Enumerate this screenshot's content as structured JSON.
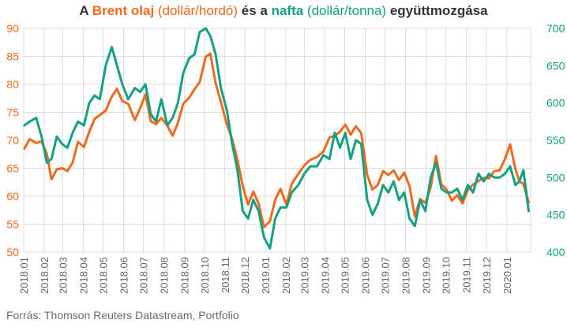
{
  "title": {
    "part1": "A ",
    "brent": "Brent olaj",
    "part2": " (dollár/hordó)",
    "part3": " és a ",
    "nafta": "nafta",
    "part4": " (dollár/tonna)",
    "part5": " együttmozgása"
  },
  "source": "Forrás: Thomson Reuters Datastream, Portfolio",
  "colors": {
    "brent": "#f06a1d",
    "naphtha": "#14a082",
    "grid": "#dcdcdc",
    "text": "#333333"
  },
  "chart_data": {
    "type": "line",
    "title": "A Brent olaj (dollár/hordó) és a nafta (dollár/tonna) együttmozgása",
    "grid": true,
    "x_tick_labels": [
      "2018.01",
      "2018.02",
      "2018.03",
      "2018.04",
      "2018.05",
      "2018.06",
      "2018.07",
      "2018.08",
      "2018.09",
      "2018.10",
      "2018.11",
      "2018.12",
      "2019.01",
      "2019.02",
      "2019.03",
      "2019.04",
      "2019.05",
      "2019.06",
      "2019.07",
      "2019.08",
      "2019.09",
      "2019.10",
      "2019.11",
      "2019.12",
      "2020.01"
    ],
    "y_left": {
      "ticks": [
        50,
        55,
        60,
        65,
        70,
        75,
        80,
        85,
        90
      ],
      "range": [
        50,
        90
      ]
    },
    "y_right": {
      "ticks": [
        400,
        450,
        500,
        550,
        600,
        650,
        700
      ],
      "range": [
        400,
        700
      ]
    },
    "series": [
      {
        "name": "Brent olaj",
        "axis": "left",
        "color": "#f06a1d",
        "x": [
          "2018-01-02",
          "2018-01-10",
          "2018-01-20",
          "2018-01-28",
          "2018-02-05",
          "2018-02-12",
          "2018-02-20",
          "2018-02-28",
          "2018-03-08",
          "2018-03-16",
          "2018-03-24",
          "2018-04-02",
          "2018-04-10",
          "2018-04-18",
          "2018-04-26",
          "2018-05-05",
          "2018-05-14",
          "2018-05-22",
          "2018-05-30",
          "2018-06-08",
          "2018-06-18",
          "2018-06-26",
          "2018-07-04",
          "2018-07-12",
          "2018-07-20",
          "2018-07-28",
          "2018-08-06",
          "2018-08-14",
          "2018-08-22",
          "2018-08-30",
          "2018-09-08",
          "2018-09-16",
          "2018-09-24",
          "2018-10-03",
          "2018-10-10",
          "2018-10-18",
          "2018-10-26",
          "2018-11-04",
          "2018-11-12",
          "2018-11-20",
          "2018-11-28",
          "2018-12-06",
          "2018-12-14",
          "2018-12-22",
          "2018-12-30",
          "2019-01-08",
          "2019-01-16",
          "2019-01-24",
          "2019-02-02",
          "2019-02-10",
          "2019-02-20",
          "2019-03-01",
          "2019-03-10",
          "2019-03-20",
          "2019-03-30",
          "2019-04-08",
          "2019-04-16",
          "2019-04-24",
          "2019-05-02",
          "2019-05-10",
          "2019-05-18",
          "2019-05-26",
          "2019-06-04",
          "2019-06-12",
          "2019-06-20",
          "2019-06-28",
          "2019-07-06",
          "2019-07-14",
          "2019-07-22",
          "2019-07-30",
          "2019-08-07",
          "2019-08-15",
          "2019-08-23",
          "2019-08-31",
          "2019-09-08",
          "2019-09-16",
          "2019-09-24",
          "2019-10-02",
          "2019-10-10",
          "2019-10-18",
          "2019-10-26",
          "2019-11-03",
          "2019-11-11",
          "2019-11-19",
          "2019-11-27",
          "2019-12-05",
          "2019-12-13",
          "2019-12-21",
          "2019-12-29",
          "2020-01-06",
          "2020-01-14",
          "2020-01-20",
          "2020-01-26",
          "2020-02-03"
        ],
        "y": [
          68.5,
          70.2,
          69.5,
          69.8,
          67.6,
          63.0,
          64.8,
          65.0,
          64.5,
          66.0,
          69.7,
          68.8,
          71.5,
          73.8,
          74.5,
          75.3,
          77.8,
          79.2,
          77.0,
          76.5,
          73.6,
          75.7,
          78.2,
          73.4,
          72.9,
          74.0,
          72.6,
          70.8,
          73.1,
          76.5,
          77.6,
          79.1,
          80.4,
          84.9,
          85.5,
          80.2,
          76.8,
          72.8,
          70.2,
          66.5,
          61.8,
          58.5,
          60.8,
          58.7,
          54.5,
          55.5,
          59.4,
          61.3,
          58.5,
          62.2,
          64.0,
          65.5,
          66.5,
          67.0,
          68.0,
          70.5,
          70.8,
          71.5,
          72.8,
          71.0,
          72.5,
          71.3,
          63.8,
          61.2,
          62.0,
          64.5,
          63.8,
          64.6,
          62.9,
          64.2,
          61.8,
          56.4,
          59.5,
          58.8,
          61.6,
          67.2,
          62.1,
          61.2,
          59.2,
          60.2,
          58.7,
          61.1,
          62.1,
          62.7,
          63.3,
          63.2,
          64.5,
          64.6,
          66.6,
          69.3,
          64.8,
          62.6,
          62.2,
          58.9
        ]
      },
      {
        "name": "nafta",
        "axis": "right",
        "color": "#14a082",
        "x": [
          "2018-01-02",
          "2018-01-10",
          "2018-01-20",
          "2018-01-28",
          "2018-02-05",
          "2018-02-12",
          "2018-02-20",
          "2018-02-28",
          "2018-03-08",
          "2018-03-16",
          "2018-03-24",
          "2018-04-02",
          "2018-04-10",
          "2018-04-18",
          "2018-04-26",
          "2018-05-05",
          "2018-05-14",
          "2018-05-22",
          "2018-05-30",
          "2018-06-08",
          "2018-06-18",
          "2018-06-26",
          "2018-07-04",
          "2018-07-12",
          "2018-07-20",
          "2018-07-28",
          "2018-08-06",
          "2018-08-14",
          "2018-08-22",
          "2018-08-30",
          "2018-09-08",
          "2018-09-16",
          "2018-09-24",
          "2018-10-03",
          "2018-10-10",
          "2018-10-18",
          "2018-10-26",
          "2018-11-04",
          "2018-11-12",
          "2018-11-20",
          "2018-11-28",
          "2018-12-06",
          "2018-12-14",
          "2018-12-22",
          "2018-12-30",
          "2019-01-08",
          "2019-01-16",
          "2019-01-24",
          "2019-02-02",
          "2019-02-10",
          "2019-02-20",
          "2019-03-01",
          "2019-03-10",
          "2019-03-20",
          "2019-03-30",
          "2019-04-08",
          "2019-04-16",
          "2019-04-24",
          "2019-05-02",
          "2019-05-10",
          "2019-05-18",
          "2019-05-26",
          "2019-06-04",
          "2019-06-12",
          "2019-06-20",
          "2019-06-28",
          "2019-07-06",
          "2019-07-14",
          "2019-07-22",
          "2019-07-30",
          "2019-08-07",
          "2019-08-15",
          "2019-08-23",
          "2019-08-31",
          "2019-09-08",
          "2019-09-16",
          "2019-09-24",
          "2019-10-02",
          "2019-10-10",
          "2019-10-18",
          "2019-10-26",
          "2019-11-03",
          "2019-11-11",
          "2019-11-19",
          "2019-11-27",
          "2019-12-05",
          "2019-12-13",
          "2019-12-21",
          "2019-12-29",
          "2020-01-06",
          "2020-01-14",
          "2020-01-20",
          "2020-01-26",
          "2020-02-03"
        ],
        "y": [
          570,
          575,
          580,
          555,
          520,
          525,
          555,
          545,
          540,
          560,
          575,
          570,
          600,
          610,
          605,
          650,
          675,
          650,
          625,
          605,
          620,
          615,
          625,
          585,
          575,
          605,
          570,
          580,
          600,
          640,
          660,
          665,
          695,
          700,
          690,
          665,
          620,
          590,
          545,
          510,
          455,
          445,
          470,
          455,
          420,
          405,
          445,
          460,
          460,
          480,
          490,
          505,
          515,
          515,
          530,
          525,
          560,
          540,
          560,
          525,
          550,
          545,
          470,
          450,
          465,
          490,
          480,
          495,
          470,
          480,
          445,
          435,
          470,
          455,
          500,
          520,
          485,
          480,
          480,
          485,
          470,
          490,
          480,
          505,
          495,
          505,
          500,
          500,
          505,
          515,
          490,
          495,
          510,
          455
        ]
      }
    ]
  }
}
